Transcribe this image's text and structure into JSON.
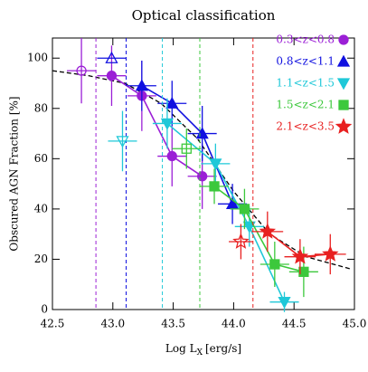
{
  "chart_data": {
    "type": "line",
    "title": "Optical classification",
    "x_label": {
      "text": "Log L",
      "sub": "X",
      "unit": "[erg/s]"
    },
    "y_label": "Obscured AGN Fraction [%]",
    "xlim": [
      42.5,
      45.0
    ],
    "ylim": [
      0,
      108
    ],
    "xticks": [
      42.5,
      {
        "value": 43,
        "label": "43.0"
      },
      43.5,
      {
        "value": 44,
        "label": "44.0"
      },
      44.5,
      {
        "value": 45,
        "label": "45.0"
      }
    ],
    "yticks": [
      0,
      20,
      40,
      60,
      80,
      100
    ],
    "legend": "top-right",
    "series": [
      {
        "name": "0.3<z<0.8",
        "color": "#9b1fd6",
        "marker": "circle",
        "redshift_cut": 42.86,
        "x": [
          42.74,
          42.99,
          43.24,
          43.49,
          43.74
        ],
        "values": [
          95,
          93,
          85,
          61,
          53
        ],
        "open": [
          true,
          false,
          false,
          false,
          false
        ],
        "xerr": [
          0.12,
          0.12,
          0.12,
          0.12,
          0.12
        ],
        "yerr": [
          13,
          12,
          14,
          12,
          13
        ]
      },
      {
        "name": "0.8<z<1.1",
        "color": "#1010e0",
        "marker": "triangle",
        "redshift_cut": 43.11,
        "x": [
          42.99,
          43.24,
          43.49,
          43.74,
          43.99
        ],
        "values": [
          100,
          89,
          82,
          70,
          42
        ],
        "open": [
          true,
          false,
          false,
          false,
          false
        ],
        "xerr": [
          0.12,
          0.12,
          0.12,
          0.12,
          0.12
        ],
        "yerr": [
          0,
          10,
          9,
          11,
          8
        ]
      },
      {
        "name": "1.1<z<1.5",
        "color": "#1fc8d8",
        "marker": "down-triangle",
        "redshift_cut": 43.41,
        "x": [
          43.08,
          43.45,
          43.85,
          44.13,
          44.42
        ],
        "values": [
          67,
          74,
          58,
          33,
          3
        ],
        "open": [
          true,
          false,
          false,
          false,
          false
        ],
        "xerr": [
          0.12,
          0.12,
          0.12,
          0.12,
          0.12
        ],
        "yerr": [
          12,
          10,
          8,
          8,
          4
        ]
      },
      {
        "name": "1.5<z<2.1",
        "color": "#3cc83c",
        "marker": "square",
        "redshift_cut": 43.72,
        "x": [
          43.61,
          43.84,
          44.09,
          44.34,
          44.58
        ],
        "values": [
          64,
          49,
          40,
          18,
          15
        ],
        "open": [
          true,
          false,
          false,
          false,
          false
        ],
        "xerr": [
          0.12,
          0.12,
          0.12,
          0.12,
          0.12
        ],
        "yerr": [
          8,
          7,
          8,
          9,
          10
        ]
      },
      {
        "name": "2.1<z<3.5",
        "color": "#e82020",
        "marker": "star",
        "redshift_cut": 44.16,
        "x": [
          44.06,
          44.28,
          44.55,
          44.8
        ],
        "values": [
          27,
          31,
          21,
          22
        ],
        "open": [
          true,
          false,
          false,
          false
        ],
        "xerr": [
          0.1,
          0.13,
          0.13,
          0.13
        ],
        "yerr": [
          7,
          8,
          7,
          8
        ]
      }
    ],
    "model": {
      "color": "#000000",
      "x": [
        42.5,
        42.8,
        43.1,
        43.4,
        43.7,
        44.0,
        44.3,
        44.6,
        44.98
      ],
      "values": [
        95,
        93,
        90,
        82,
        68,
        47,
        30,
        21,
        16
      ]
    }
  }
}
